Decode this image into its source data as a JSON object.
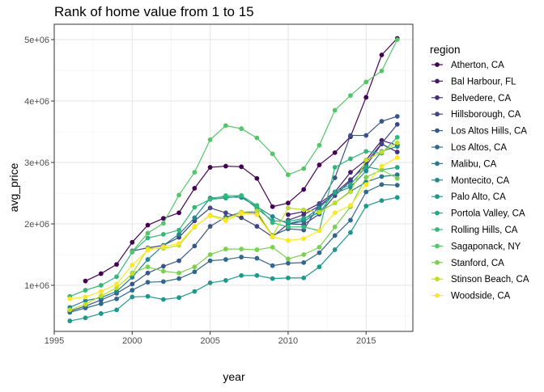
{
  "chart_data": {
    "type": "line",
    "title": "Rank of home value from 1 to 15",
    "xlabel": "year",
    "ylabel": "avg_price",
    "xlim": [
      1995,
      2018
    ],
    "ylim": [
      250000,
      5250000
    ],
    "x_ticks": [
      1995,
      2000,
      2005,
      2010,
      2015
    ],
    "x_tick_labels": [
      "1995",
      "2000",
      "2005",
      "2010",
      "2015"
    ],
    "y_ticks": [
      1000000,
      2000000,
      3000000,
      4000000,
      5000000
    ],
    "y_tick_labels": [
      "1e+06",
      "2e+06",
      "3e+06",
      "4e+06",
      "5e+06"
    ],
    "grid": true,
    "legend": {
      "title": "region",
      "position": "right"
    },
    "x": [
      1996,
      1997,
      1998,
      1999,
      2000,
      2001,
      2002,
      2003,
      2004,
      2005,
      2006,
      2007,
      2008,
      2009,
      2010,
      2011,
      2012,
      2013,
      2014,
      2015,
      2016,
      2017
    ],
    "series": [
      {
        "name": "Atherton, CA",
        "color": "#440154",
        "values": [
          null,
          1070000,
          1190000,
          1340000,
          1700000,
          1980000,
          2090000,
          2180000,
          2580000,
          2920000,
          2940000,
          2930000,
          2740000,
          2280000,
          2340000,
          2560000,
          2960000,
          3160000,
          3420000,
          4060000,
          4750000,
          5020000
        ]
      },
      {
        "name": "Bal Harbour, FL",
        "color": "#481a6c",
        "values": [
          null,
          null,
          null,
          null,
          null,
          null,
          null,
          null,
          null,
          null,
          null,
          null,
          null,
          null,
          2150000,
          2200000,
          2330000,
          2520000,
          2840000,
          3040000,
          3360000,
          3280000
        ]
      },
      {
        "name": "Belvedere, CA",
        "color": "#472f7d",
        "values": [
          null,
          null,
          null,
          null,
          null,
          null,
          null,
          null,
          null,
          null,
          null,
          null,
          null,
          null,
          2060000,
          2150000,
          2290000,
          2500000,
          2720000,
          2950000,
          3300000,
          3170000
        ]
      },
      {
        "name": "Hillsborough, CA",
        "color": "#414487",
        "values": [
          null,
          null,
          null,
          null,
          1560000,
          1610000,
          1650000,
          1780000,
          2050000,
          2260000,
          2180000,
          2100000,
          1960000,
          1790000,
          2000000,
          1990000,
          2160000,
          2460000,
          2700000,
          3000000,
          3310000,
          3620000
        ]
      },
      {
        "name": "Los Altos Hills, CA",
        "color": "#39568c",
        "values": [
          580000,
          660000,
          760000,
          870000,
          1020000,
          1200000,
          1310000,
          1400000,
          1640000,
          1960000,
          2110000,
          2190000,
          2180000,
          1810000,
          1920000,
          1900000,
          2320000,
          2750000,
          3440000,
          3440000,
          3670000,
          3750000
        ]
      },
      {
        "name": "Los Altos, CA",
        "color": "#31688e",
        "values": [
          560000,
          630000,
          700000,
          780000,
          920000,
          1050000,
          1060000,
          1110000,
          1220000,
          1400000,
          1420000,
          1460000,
          1440000,
          1320000,
          1360000,
          1370000,
          1530000,
          1810000,
          2060000,
          2520000,
          2640000,
          2630000
        ]
      },
      {
        "name": "Malibu, CA",
        "color": "#2a788e",
        "values": [
          null,
          null,
          null,
          null,
          null,
          null,
          null,
          null,
          null,
          null,
          null,
          null,
          null,
          null,
          2000000,
          2040000,
          2200000,
          2340000,
          2530000,
          2680000,
          2770000,
          2800000
        ]
      },
      {
        "name": "Montecito, CA",
        "color": "#23888e",
        "values": [
          640000,
          750000,
          800000,
          900000,
          1130000,
          1420000,
          1650000,
          1830000,
          2100000,
          2420000,
          2440000,
          2430000,
          2280000,
          2120000,
          2000000,
          2070000,
          2260000,
          2500000,
          2600000,
          2860000,
          3180000,
          3260000
        ]
      },
      {
        "name": "Palo Alto, CA",
        "color": "#1f988b",
        "values": [
          420000,
          470000,
          540000,
          600000,
          810000,
          820000,
          770000,
          800000,
          900000,
          1040000,
          1080000,
          1160000,
          1160000,
          1110000,
          1120000,
          1120000,
          1300000,
          1580000,
          1860000,
          2290000,
          2380000,
          2430000
        ]
      },
      {
        "name": "Portola Valley, CA",
        "color": "#22a884",
        "values": [
          null,
          null,
          null,
          null,
          null,
          null,
          null,
          null,
          null,
          2400000,
          2420000,
          2460000,
          2250000,
          2050000,
          2040000,
          2090000,
          2180000,
          2520000,
          2640000,
          2930000,
          2880000,
          2920000
        ]
      },
      {
        "name": "Rolling Hills, CA",
        "color": "#35b779",
        "values": [
          820000,
          920000,
          1000000,
          1140000,
          1540000,
          1770000,
          1830000,
          1900000,
          2270000,
          2400000,
          2460000,
          2460000,
          2300000,
          2020000,
          1950000,
          1950000,
          1890000,
          2920000,
          3060000,
          3180000,
          3150000,
          3410000
        ]
      },
      {
        "name": "Sagaponack, NY",
        "color": "#54c568",
        "values": [
          null,
          null,
          null,
          null,
          1550000,
          1850000,
          2010000,
          2470000,
          2840000,
          3370000,
          3600000,
          3550000,
          3400000,
          3140000,
          2800000,
          2900000,
          3280000,
          3850000,
          4090000,
          4310000,
          4490000,
          5000000
        ]
      },
      {
        "name": "Stanford, CA",
        "color": "#7ad151",
        "values": [
          null,
          null,
          null,
          null,
          1200000,
          1300000,
          1230000,
          1200000,
          1300000,
          1500000,
          1590000,
          1590000,
          1580000,
          1620000,
          1430000,
          1500000,
          1620000,
          1950000,
          2280000,
          2760000,
          2880000,
          2740000
        ]
      },
      {
        "name": "Stinson Beach, CA",
        "color": "#bddf26",
        "values": [
          600000,
          690000,
          830000,
          960000,
          1190000,
          1600000,
          1600000,
          1650000,
          1950000,
          2140000,
          2080000,
          2190000,
          2210000,
          1800000,
          2260000,
          2230000,
          2190000,
          2340000,
          2520000,
          3040000,
          3170000,
          3320000
        ]
      },
      {
        "name": "Woodside, CA",
        "color": "#fde725",
        "values": [
          780000,
          810000,
          900000,
          1020000,
          1330000,
          1570000,
          1630000,
          1680000,
          1960000,
          2130000,
          2050000,
          2170000,
          2150000,
          1790000,
          1730000,
          1760000,
          1890000,
          2180000,
          2300000,
          2640000,
          2940000,
          3080000
        ]
      }
    ]
  }
}
